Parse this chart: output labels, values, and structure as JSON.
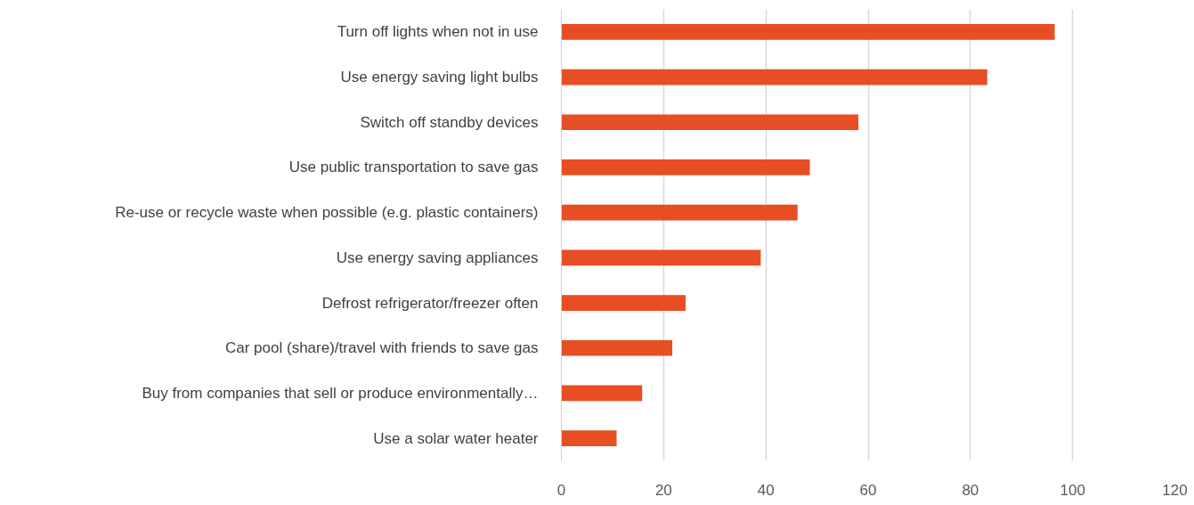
{
  "chart_data": {
    "type": "bar",
    "orientation": "horizontal",
    "categories": [
      "Turn off lights when not in use",
      "Use energy saving light bulbs",
      "Switch off standby devices",
      "Use public transportation to save gas",
      "Re-use or recycle waste when possible (e.g. plastic containers)",
      "Use energy saving appliances",
      "Defrost refrigerator/freezer often",
      "Car pool (share)/travel with friends to save gas",
      "Buy from companies that sell or produce environmentally…",
      "Use a solar water heater"
    ],
    "values": [
      96.5,
      83.3,
      58.1,
      48.6,
      46.2,
      39.0,
      24.3,
      21.7,
      15.8,
      10.8
    ],
    "color": "#e84e23",
    "xlim": [
      0,
      120
    ],
    "xticks": [
      0,
      20,
      40,
      60,
      80,
      100,
      120
    ],
    "grid": "x"
  }
}
